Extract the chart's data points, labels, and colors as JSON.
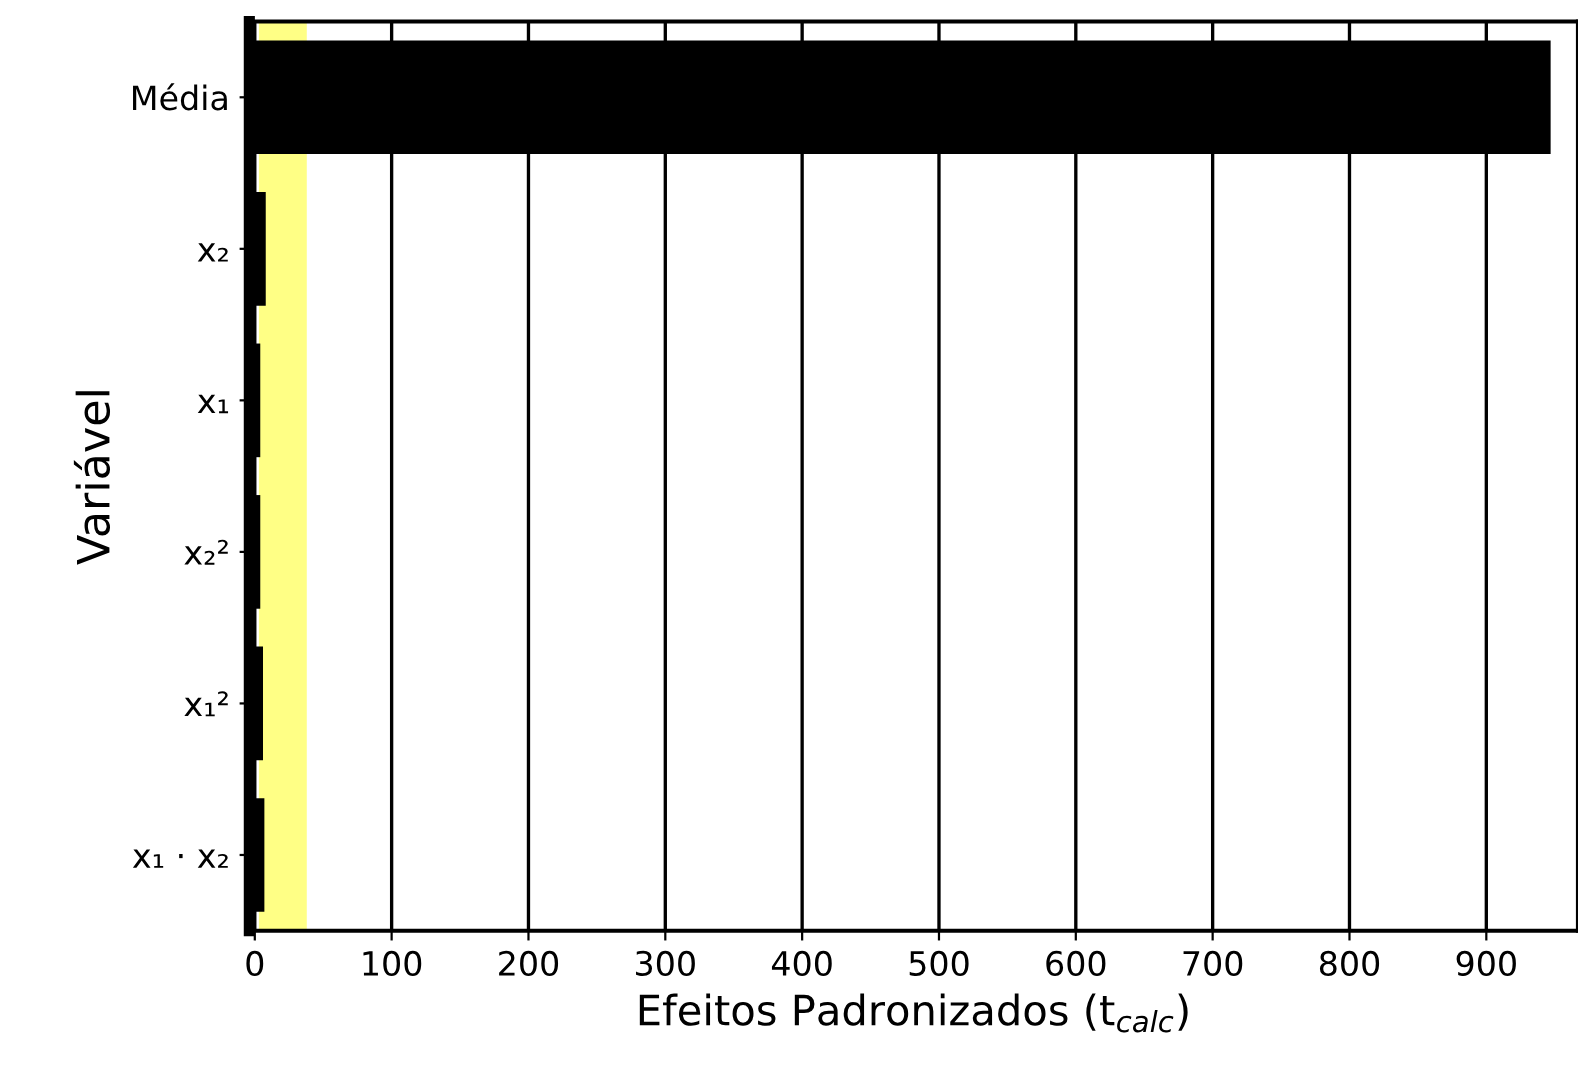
{
  "chart_data": {
    "type": "bar",
    "orientation": "horizontal",
    "xlabel": "Efeitos Padronizados (t$_{calc}$)",
    "ylabel": "Variável",
    "categories": [
      "Média",
      "x₂",
      "x₁",
      "x₂²",
      "x₁²",
      "x₁ · x₂"
    ],
    "values": [
      947,
      8,
      4,
      4,
      6,
      7
    ],
    "color": "#000000",
    "xlim": [
      -4,
      967
    ],
    "xticks": [
      0,
      100,
      200,
      300,
      400,
      500,
      600,
      700,
      800,
      900
    ],
    "grid": "x",
    "bands": [
      {
        "axis": "x",
        "from": 3,
        "to": 38,
        "color": "#ffff66"
      }
    ]
  }
}
